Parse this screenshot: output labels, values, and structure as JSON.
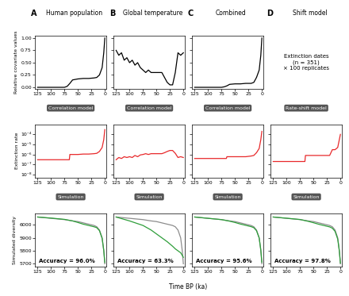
{
  "xlabel": "Time BP (ka)",
  "panels": [
    {
      "label": "A",
      "title": "Human population",
      "steps": [
        "Correlation model",
        "Simulation"
      ]
    },
    {
      "label": "B",
      "title": "Global temperature",
      "steps": [
        "Correlation model",
        "Simulation"
      ]
    },
    {
      "label": "C",
      "title": "Combined",
      "steps": [
        "Correlation model",
        "Simulation"
      ]
    },
    {
      "label": "D",
      "title": "Shift model",
      "steps": [
        "Rate-shift model",
        "Simulation"
      ],
      "note": "Extinction dates\n(n = 351)\n× 100 replicates"
    }
  ],
  "chart_data": [
    {
      "type": "line",
      "ylabel": "Relative covariate values",
      "x": [
        125,
        100,
        75,
        70,
        65,
        60,
        50,
        40,
        30,
        20,
        15,
        10,
        5,
        2,
        0
      ],
      "series": [
        {
          "color": "#000000",
          "values": [
            0,
            0,
            0,
            0.02,
            0.08,
            0.15,
            0.17,
            0.18,
            0.18,
            0.19,
            0.2,
            0.25,
            0.4,
            0.7,
            1.0
          ]
        }
      ],
      "xlim": [
        130,
        -3
      ],
      "xticks": [
        125,
        100,
        75,
        50,
        25,
        0
      ],
      "ylim": [
        -0.03,
        1.05
      ],
      "yticks": [
        {
          "value": 0,
          "label": "0.00"
        },
        {
          "value": 0.25,
          "label": "0.25"
        },
        {
          "value": 0.5,
          "label": "0.50"
        },
        {
          "value": 0.75,
          "label": "0.75"
        },
        {
          "value": 1.0,
          "label": "1.00"
        }
      ]
    },
    {
      "type": "line",
      "ylabel": "Extinction rate",
      "log": "y",
      "x": [
        125,
        100,
        75,
        66,
        65,
        50,
        40,
        30,
        20,
        15,
        10,
        5,
        2,
        0
      ],
      "series": [
        {
          "color": "#e8292b",
          "values": [
            3e-07,
            3e-07,
            3e-07,
            3e-07,
            1e-06,
            1e-06,
            1.1e-06,
            1.1e-06,
            1.2e-06,
            1.3e-06,
            2e-06,
            5e-06,
            3e-05,
            0.0003
          ]
        }
      ],
      "xlim": [
        130,
        -3
      ],
      "xticks": [
        125,
        100,
        75,
        50,
        25,
        0
      ],
      "ylim": [
        5e-09,
        0.001
      ],
      "yticks": [
        {
          "value": 1e-08,
          "label": "10⁻⁸"
        },
        {
          "value": 1e-07,
          "label": "10⁻⁷"
        },
        {
          "value": 1e-06,
          "label": "10⁻⁶"
        },
        {
          "value": 1e-05,
          "label": "10⁻⁵"
        },
        {
          "value": 0.0001,
          "label": "10⁻⁴"
        }
      ]
    },
    {
      "type": "line",
      "ylabel": "Simulated diversity",
      "annotations": [
        "Accuracy = 96.0%"
      ],
      "x": [
        125,
        100,
        75,
        60,
        50,
        40,
        30,
        20,
        15,
        10,
        5,
        2,
        0
      ],
      "series": [
        {
          "color": "#8c8c8c",
          "values": [
            6060,
            6050,
            6040,
            6030,
            6025,
            6015,
            6005,
            5995,
            5985,
            5960,
            5900,
            5800,
            5700
          ]
        },
        {
          "color": "#2e9e3a",
          "values": [
            6060,
            6052,
            6042,
            6030,
            6018,
            6005,
            5995,
            5985,
            5978,
            5955,
            5895,
            5805,
            5710
          ]
        }
      ],
      "xlim": [
        130,
        -3
      ],
      "xticks": [
        125,
        100,
        75,
        50,
        25,
        0
      ],
      "ylim": [
        5680,
        6090
      ],
      "yticks": [
        5700,
        5800,
        5900,
        6000
      ]
    },
    {
      "type": "line",
      "tick_labels": "x",
      "x": [
        125,
        120,
        115,
        110,
        105,
        100,
        95,
        90,
        85,
        80,
        75,
        70,
        65,
        60,
        55,
        50,
        45,
        40,
        35,
        30,
        25,
        20,
        15,
        10,
        5,
        0
      ],
      "series": [
        {
          "color": "#000000",
          "values": [
            0.75,
            0.65,
            0.7,
            0.55,
            0.6,
            0.5,
            0.55,
            0.45,
            0.5,
            0.4,
            0.35,
            0.3,
            0.35,
            0.3,
            0.3,
            0.3,
            0.3,
            0.3,
            0.2,
            0.1,
            0.05,
            0.05,
            0.3,
            0.7,
            0.65,
            0.7
          ]
        }
      ],
      "xlim": [
        130,
        -3
      ],
      "xticks": [
        125,
        100,
        75,
        50,
        25,
        0
      ],
      "ylim": [
        -0.03,
        1.05
      ],
      "yticks": [
        {
          "value": 0,
          "label": "0.00"
        },
        {
          "value": 0.25,
          "label": "0.25"
        },
        {
          "value": 0.5,
          "label": "0.50"
        },
        {
          "value": 0.75,
          "label": "0.75"
        },
        {
          "value": 1.0,
          "label": "1.00"
        }
      ]
    },
    {
      "type": "line",
      "tick_labels": "x",
      "log": "y",
      "x": [
        125,
        120,
        115,
        110,
        105,
        100,
        95,
        90,
        85,
        80,
        75,
        70,
        65,
        60,
        55,
        50,
        45,
        40,
        35,
        30,
        25,
        20,
        15,
        10,
        5,
        0
      ],
      "series": [
        {
          "color": "#e8292b",
          "values": [
            3e-07,
            5e-07,
            4e-07,
            6e-07,
            5e-07,
            6e-07,
            5e-07,
            8e-07,
            6e-07,
            9e-07,
            1e-06,
            1.2e-06,
            1e-06,
            1.2e-06,
            1.2e-06,
            1.2e-06,
            1.2e-06,
            1.2e-06,
            1.5e-06,
            2e-06,
            2.5e-06,
            2.5e-06,
            1.3e-06,
            5e-07,
            6e-07,
            5e-07
          ]
        }
      ],
      "xlim": [
        130,
        -3
      ],
      "xticks": [
        125,
        100,
        75,
        50,
        25,
        0
      ],
      "ylim": [
        5e-09,
        0.001
      ],
      "yticks": [
        {
          "value": 1e-08,
          "label": "10⁻⁸"
        },
        {
          "value": 1e-07,
          "label": "10⁻⁷"
        },
        {
          "value": 1e-06,
          "label": "10⁻⁶"
        },
        {
          "value": 1e-05,
          "label": "10⁻⁵"
        },
        {
          "value": 0.0001,
          "label": "10⁻⁴"
        }
      ]
    },
    {
      "type": "line",
      "tick_labels": "x",
      "annotations": [
        "Accuracy = 63.3%"
      ],
      "x": [
        125,
        100,
        75,
        60,
        50,
        40,
        30,
        20,
        15,
        10,
        5,
        2,
        0
      ],
      "series": [
        {
          "color": "#8c8c8c",
          "values": [
            6060,
            6050,
            6040,
            6030,
            6025,
            6015,
            6005,
            5995,
            5985,
            5960,
            5900,
            5800,
            5700
          ]
        },
        {
          "color": "#2e9e3a",
          "values": [
            6060,
            6030,
            5995,
            5960,
            5930,
            5900,
            5870,
            5835,
            5815,
            5800,
            5785,
            5765,
            5750
          ]
        }
      ],
      "xlim": [
        130,
        -3
      ],
      "xticks": [
        125,
        100,
        75,
        50,
        25,
        0
      ],
      "ylim": [
        5680,
        6090
      ],
      "yticks": [
        5700,
        5800,
        5900,
        6000
      ]
    },
    {
      "type": "line",
      "tick_labels": "x",
      "x": [
        125,
        100,
        75,
        70,
        65,
        60,
        50,
        40,
        30,
        20,
        15,
        10,
        5,
        2,
        0
      ],
      "series": [
        {
          "color": "#000000",
          "values": [
            0,
            0,
            0,
            0.01,
            0.03,
            0.06,
            0.07,
            0.07,
            0.08,
            0.08,
            0.1,
            0.2,
            0.35,
            0.65,
            1.0
          ]
        }
      ],
      "xlim": [
        130,
        -3
      ],
      "xticks": [
        125,
        100,
        75,
        50,
        25,
        0
      ],
      "ylim": [
        -0.03,
        1.05
      ],
      "yticks": [
        {
          "value": 0,
          "label": "0.00"
        },
        {
          "value": 0.25,
          "label": "0.25"
        },
        {
          "value": 0.5,
          "label": "0.50"
        },
        {
          "value": 0.75,
          "label": "0.75"
        },
        {
          "value": 1.0,
          "label": "1.00"
        }
      ]
    },
    {
      "type": "line",
      "tick_labels": "x",
      "log": "y",
      "x": [
        125,
        100,
        75,
        66,
        65,
        50,
        40,
        30,
        20,
        15,
        10,
        5,
        2,
        0
      ],
      "series": [
        {
          "color": "#e8292b",
          "values": [
            4e-07,
            4e-07,
            4e-07,
            4e-07,
            6e-07,
            6e-07,
            6e-07,
            6e-07,
            7e-07,
            8e-07,
            1.5e-06,
            4e-06,
            3e-05,
            0.0002
          ]
        }
      ],
      "xlim": [
        130,
        -3
      ],
      "xticks": [
        125,
        100,
        75,
        50,
        25,
        0
      ],
      "ylim": [
        5e-09,
        0.001
      ],
      "yticks": [
        {
          "value": 1e-08,
          "label": "10⁻⁸"
        },
        {
          "value": 1e-07,
          "label": "10⁻⁷"
        },
        {
          "value": 1e-06,
          "label": "10⁻⁶"
        },
        {
          "value": 1e-05,
          "label": "10⁻⁵"
        },
        {
          "value": 0.0001,
          "label": "10⁻⁴"
        }
      ]
    },
    {
      "type": "line",
      "tick_labels": "x",
      "annotations": [
        "Accuracy = 95.6%"
      ],
      "x": [
        125,
        100,
        75,
        60,
        50,
        40,
        30,
        20,
        15,
        10,
        5,
        2,
        0
      ],
      "series": [
        {
          "color": "#8c8c8c",
          "values": [
            6060,
            6050,
            6040,
            6030,
            6025,
            6015,
            6005,
            5995,
            5985,
            5960,
            5900,
            5800,
            5700
          ]
        },
        {
          "color": "#2e9e3a",
          "values": [
            6060,
            6050,
            6040,
            6028,
            6018,
            6006,
            5996,
            5986,
            5978,
            5955,
            5898,
            5808,
            5712
          ]
        }
      ],
      "xlim": [
        130,
        -3
      ],
      "xticks": [
        125,
        100,
        75,
        50,
        25,
        0
      ],
      "ylim": [
        5680,
        6090
      ],
      "yticks": [
        5700,
        5800,
        5900,
        6000
      ]
    },
    {
      "type": "line",
      "tick_labels": "x",
      "log": "y",
      "x": [
        125,
        100,
        75,
        66,
        65,
        50,
        40,
        30,
        20,
        15,
        10,
        5,
        2,
        0
      ],
      "series": [
        {
          "color": "#e8292b",
          "values": [
            2e-07,
            2e-07,
            2e-07,
            2e-07,
            8e-07,
            8e-07,
            8e-07,
            8e-07,
            8e-07,
            3e-06,
            3e-06,
            5e-06,
            3e-05,
            0.0001
          ]
        }
      ],
      "xlim": [
        130,
        -3
      ],
      "xticks": [
        125,
        100,
        75,
        50,
        25,
        0
      ],
      "ylim": [
        5e-09,
        0.001
      ],
      "yticks": [
        {
          "value": 1e-08,
          "label": "10⁻⁸"
        },
        {
          "value": 1e-07,
          "label": "10⁻⁷"
        },
        {
          "value": 1e-06,
          "label": "10⁻⁶"
        },
        {
          "value": 1e-05,
          "label": "10⁻⁵"
        },
        {
          "value": 0.0001,
          "label": "10⁻⁴"
        }
      ]
    },
    {
      "type": "line",
      "tick_labels": "x",
      "annotations": [
        "Accuracy = 97.8%"
      ],
      "x": [
        125,
        100,
        75,
        60,
        50,
        40,
        30,
        20,
        15,
        10,
        5,
        2,
        0
      ],
      "series": [
        {
          "color": "#8c8c8c",
          "values": [
            6060,
            6050,
            6040,
            6030,
            6025,
            6015,
            6005,
            5995,
            5985,
            5960,
            5900,
            5800,
            5700
          ]
        },
        {
          "color": "#2e9e3a",
          "values": [
            6060,
            6051,
            6041,
            6027,
            6016,
            6004,
            5994,
            5984,
            5974,
            5950,
            5890,
            5800,
            5705
          ]
        }
      ],
      "xlim": [
        130,
        -3
      ],
      "xticks": [
        125,
        100,
        75,
        50,
        25,
        0
      ],
      "ylim": [
        5680,
        6090
      ],
      "yticks": [
        5700,
        5800,
        5900,
        6000
      ]
    }
  ]
}
